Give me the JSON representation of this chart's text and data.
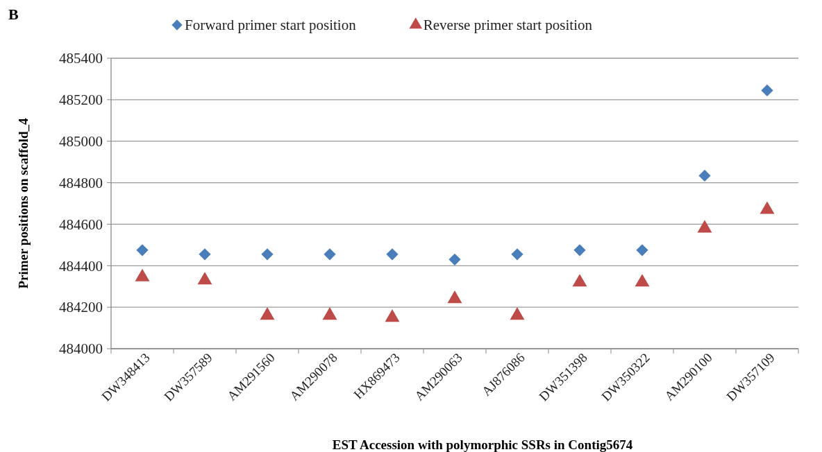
{
  "chart_data": {
    "type": "scatter",
    "xlabel": "EST Accession with polymorphic  SSRs in Contig5674",
    "ylabel": "Primer  positions on scaffold_4",
    "annotations": [
      "B"
    ],
    "categories": [
      "DW348413",
      "DW357589",
      "AM291560",
      "AM290078",
      "HX869473",
      "AM290063",
      "AJ876086",
      "DW351398",
      "DW350322",
      "AM290100",
      "DW357109"
    ],
    "series": [
      {
        "name": "Forward primer start position",
        "color": "#4a7ebb",
        "marker": "diamond",
        "values": [
          484475,
          484455,
          484455,
          484455,
          484455,
          484430,
          484455,
          484475,
          484475,
          484834,
          485245
        ]
      },
      {
        "name": "Reverse primer start position",
        "color": "#be4b48",
        "marker": "triangle",
        "values": [
          484345,
          484330,
          484160,
          484160,
          484150,
          484240,
          484160,
          484320,
          484320,
          484580,
          484670
        ]
      }
    ],
    "ylim": [
      484000,
      485400
    ],
    "yticks": [
      484000,
      484200,
      484400,
      484600,
      484800,
      485000,
      485200,
      485400
    ],
    "grid": "y",
    "legend": "top"
  }
}
